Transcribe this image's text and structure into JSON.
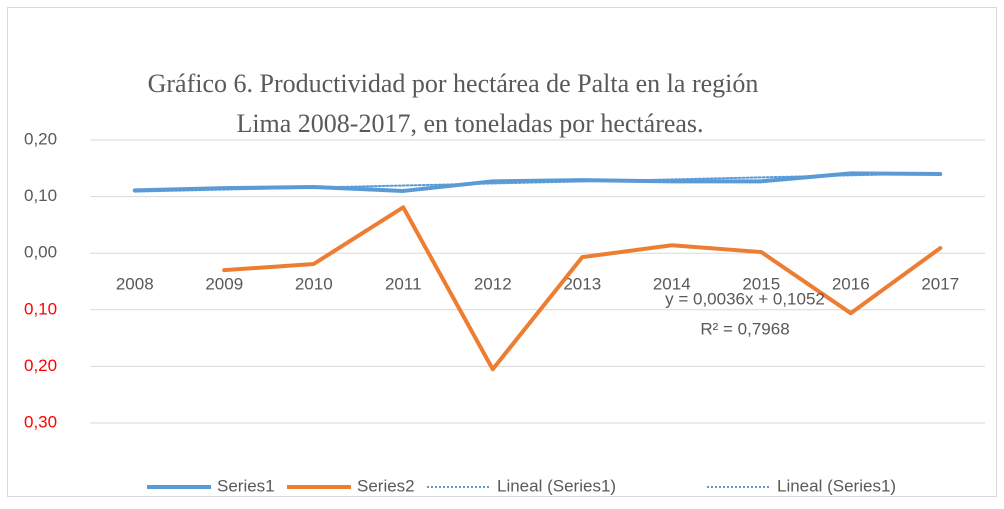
{
  "chart_data": {
    "type": "line",
    "title": "Gráfico 6. Productividad  por hectárea de Palta en la región",
    "subtitle": "Lima  2008-2017, en toneladas por hectáreas.",
    "categories": [
      "2008",
      "2009",
      "2010",
      "2011",
      "2012",
      "2013",
      "2014",
      "2015",
      "2016",
      "2017"
    ],
    "series": [
      {
        "name": "Series1",
        "color": "#5b9bd5",
        "style": "solid",
        "values": [
          0.111,
          0.115,
          0.117,
          0.11,
          0.127,
          0.129,
          0.127,
          0.127,
          0.141,
          0.14
        ]
      },
      {
        "name": "Series2",
        "color": "#ed7d31",
        "style": "solid",
        "values": [
          null,
          -0.03,
          -0.019,
          0.081,
          -0.205,
          -0.007,
          0.014,
          0.002,
          -0.106,
          0.009
        ]
      },
      {
        "name": "Lineal (Series1)",
        "color": "#5b9bd5",
        "style": "dotted",
        "values": [
          0.1088,
          0.1124,
          0.116,
          0.1196,
          0.1232,
          0.1268,
          0.1304,
          0.134,
          0.1376,
          0.1412
        ]
      },
      {
        "name": "Lineal (Series1)",
        "color": "#5b9bd5",
        "style": "dotted",
        "values": [
          null,
          null,
          null,
          null,
          null,
          null,
          null,
          null,
          null,
          null
        ]
      }
    ],
    "annotations": [
      "y = 0,0036x + 0,1052",
      "R² = 0,7968"
    ],
    "ylim": [
      -0.3,
      0.2
    ],
    "yticks": [
      {
        "value": 0.2,
        "label": "0,20"
      },
      {
        "value": 0.1,
        "label": "0,10"
      },
      {
        "value": 0,
        "label": "0,00"
      },
      {
        "value": -0.1,
        "label": "0,10"
      },
      {
        "value": -0.2,
        "label": "0,20"
      },
      {
        "value": -0.3,
        "label": "0,30"
      }
    ],
    "negative_tick_color": "#ff0000",
    "grid": true,
    "legend": "bottom"
  }
}
